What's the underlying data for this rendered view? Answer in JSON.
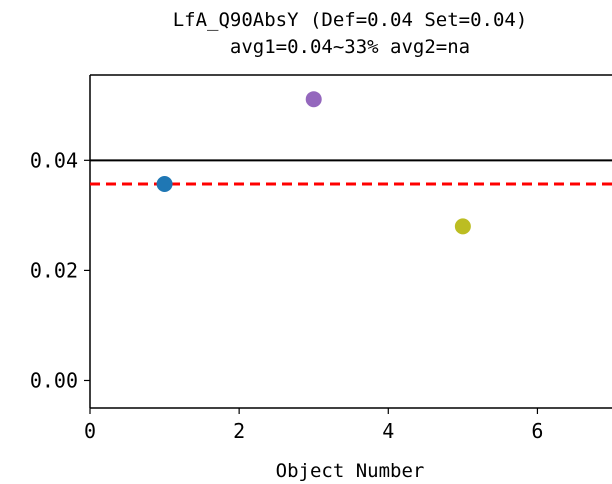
{
  "chart_data": {
    "type": "scatter",
    "title_line1": "LfA_Q90AbsY (Def=0.04 Set=0.04)",
    "title_line2": "avg1=0.04~33% avg2=na",
    "xlabel": "Object Number",
    "ylabel": "",
    "xlim": [
      0,
      7
    ],
    "ylim": [
      -0.005,
      0.0555
    ],
    "x_ticks": [
      0,
      2,
      4,
      6
    ],
    "x_tick_labels": [
      "0",
      "2",
      "4",
      "6"
    ],
    "y_ticks": [
      0.0,
      0.02,
      0.04
    ],
    "y_tick_labels": [
      "0.00",
      "0.02",
      "0.04"
    ],
    "points": [
      {
        "x": 1,
        "y": 0.0357,
        "color": "#1f77b4"
      },
      {
        "x": 3,
        "y": 0.0511,
        "color": "#9467bd"
      },
      {
        "x": 5,
        "y": 0.028,
        "color": "#bcbd22"
      }
    ],
    "reference_lines": [
      {
        "y": 0.04,
        "color": "#000000",
        "style": "solid"
      },
      {
        "y": 0.0357,
        "color": "#ff0000",
        "style": "dashed"
      }
    ],
    "grid": false
  }
}
